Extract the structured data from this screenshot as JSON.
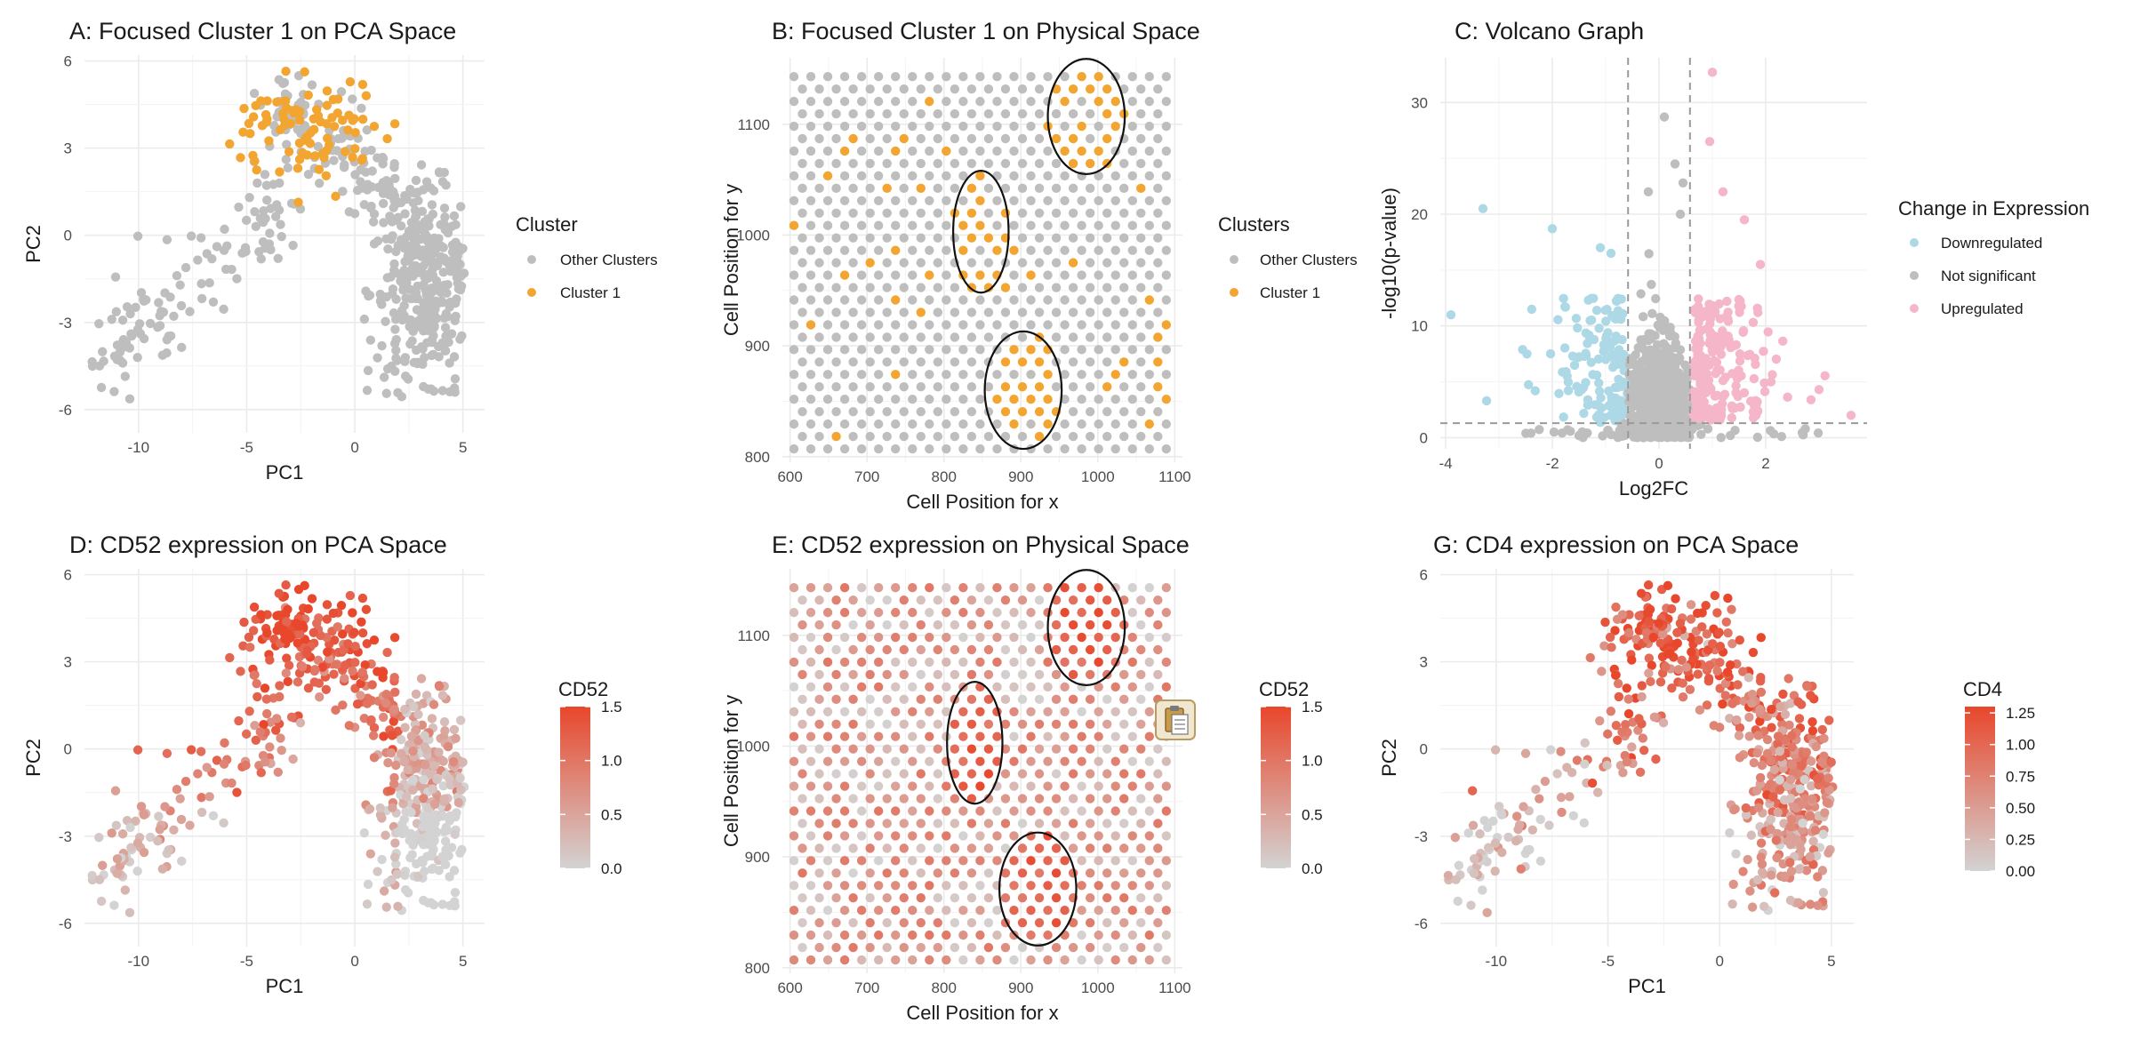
{
  "colors": {
    "orange": "#F2A530",
    "grey": "#BEBEBE",
    "blue": "#ADD8E6",
    "pink": "#F4B6C8",
    "grad_low": "#D3D3D3",
    "grad_high": "#E8472C"
  },
  "chart_data": [
    {
      "id": "A",
      "type": "scatter",
      "title": "A: Focused Cluster 1 on PCA Space",
      "xlabel": "PC1",
      "ylabel": "PC2",
      "xlim": [
        -12.5,
        6
      ],
      "ylim": [
        -6.8,
        6.2
      ],
      "xticks": [
        "-10",
        "-5",
        "0",
        "5"
      ],
      "xtick_values": [
        -10,
        -5,
        0,
        5
      ],
      "yticks": [
        "-6",
        "-3",
        "0",
        "3",
        "6"
      ],
      "ytick_values": [
        -6,
        -3,
        0,
        3,
        6
      ],
      "legend": {
        "title": "Cluster",
        "entries": [
          "Other Clusters",
          "Cluster 1"
        ]
      },
      "grid": true
    },
    {
      "id": "B",
      "type": "scatter",
      "title": "B: Focused Cluster 1 on Physical Space",
      "xlabel": "Cell Position for x",
      "ylabel": "Cell Position for y",
      "xlim": [
        590,
        1110
      ],
      "ylim": [
        795,
        1160
      ],
      "xticks": [
        "600",
        "700",
        "800",
        "900",
        "1000",
        "1100"
      ],
      "xtick_values": [
        600,
        700,
        800,
        900,
        1000,
        1100
      ],
      "yticks": [
        "800",
        "900",
        "1000",
        "1100"
      ],
      "ytick_values": [
        800,
        900,
        1000,
        1100
      ],
      "legend": {
        "title": "Clusters",
        "entries": [
          "Other Clusters",
          "Cluster 1"
        ]
      },
      "ellipses": [
        {
          "cx": 985,
          "cy": 1107,
          "rx": 50,
          "ry": 52
        },
        {
          "cx": 848,
          "cy": 1003,
          "rx": 36,
          "ry": 55
        },
        {
          "cx": 903,
          "cy": 860,
          "rx": 50,
          "ry": 53
        }
      ],
      "grid": true
    },
    {
      "id": "C",
      "type": "scatter",
      "title": "C: Volcano Graph",
      "xlabel": "Log2FC",
      "ylabel": "-log10(p-value)",
      "xlim": [
        -4.1,
        3.9
      ],
      "ylim": [
        -1,
        34
      ],
      "xticks": [
        "-4",
        "-2",
        "0",
        "2"
      ],
      "xtick_values": [
        -4,
        -2,
        0,
        2
      ],
      "yticks": [
        "0",
        "10",
        "20",
        "30"
      ],
      "ytick_values": [
        0,
        10,
        20,
        30
      ],
      "threshold_x": [
        -0.58,
        0.58
      ],
      "threshold_y": 1.3,
      "legend": {
        "title": "Change in Expression",
        "entries": [
          "Downregulated",
          "Not significant",
          "Upregulated"
        ]
      },
      "grid": true
    },
    {
      "id": "D",
      "type": "scatter",
      "title": "D: CD52 expression on PCA Space",
      "xlabel": "PC1",
      "ylabel": "PC2",
      "xlim": [
        -12.5,
        6
      ],
      "ylim": [
        -6.8,
        6.2
      ],
      "xticks": [
        "-10",
        "-5",
        "0",
        "5"
      ],
      "xtick_values": [
        -10,
        -5,
        0,
        5
      ],
      "yticks": [
        "-6",
        "-3",
        "0",
        "3",
        "6"
      ],
      "ytick_values": [
        -6,
        -3,
        0,
        3,
        6
      ],
      "colorbar": {
        "title": "CD52",
        "ticks": [
          "0.0",
          "0.5",
          "1.0",
          "1.5"
        ],
        "tick_values": [
          0,
          0.5,
          1.0,
          1.5
        ],
        "range": [
          0,
          1.5
        ]
      },
      "grid": true
    },
    {
      "id": "E",
      "type": "scatter",
      "title": "E: CD52 expression on Physical Space",
      "xlabel": "Cell Position for x",
      "ylabel": "Cell Position for y",
      "xlim": [
        590,
        1110
      ],
      "ylim": [
        795,
        1160
      ],
      "xticks": [
        "600",
        "700",
        "800",
        "900",
        "1000",
        "1100"
      ],
      "xtick_values": [
        600,
        700,
        800,
        900,
        1000,
        1100
      ],
      "yticks": [
        "800",
        "900",
        "1000",
        "1100"
      ],
      "ytick_values": [
        800,
        900,
        1000,
        1100
      ],
      "colorbar": {
        "title": "CD52",
        "ticks": [
          "0.0",
          "0.5",
          "1.0",
          "1.5"
        ],
        "tick_values": [
          0,
          0.5,
          1.0,
          1.5
        ],
        "range": [
          0,
          1.5
        ]
      },
      "ellipses": [
        {
          "cx": 985,
          "cy": 1107,
          "rx": 50,
          "ry": 52
        },
        {
          "cx": 840,
          "cy": 1003,
          "rx": 36,
          "ry": 55
        },
        {
          "cx": 922,
          "cy": 871,
          "rx": 50,
          "ry": 51
        }
      ],
      "grid": true
    },
    {
      "id": "G",
      "type": "scatter",
      "title": "G: CD4 expression on PCA Space",
      "xlabel": "PC1",
      "ylabel": "PC2",
      "xlim": [
        -12.5,
        6
      ],
      "ylim": [
        -6.8,
        6.2
      ],
      "xticks": [
        "-10",
        "-5",
        "0",
        "5"
      ],
      "xtick_values": [
        -10,
        -5,
        0,
        5
      ],
      "yticks": [
        "-6",
        "-3",
        "0",
        "3",
        "6"
      ],
      "ytick_values": [
        -6,
        -3,
        0,
        3,
        6
      ],
      "colorbar": {
        "title": "CD4",
        "ticks": [
          "0.00",
          "0.25",
          "0.50",
          "0.75",
          "1.00",
          "1.25"
        ],
        "tick_values": [
          0,
          0.25,
          0.5,
          0.75,
          1.0,
          1.25
        ],
        "range": [
          0,
          1.3
        ]
      },
      "grid": true
    }
  ],
  "clipboard_icon": {
    "name": "clipboard-icon"
  }
}
